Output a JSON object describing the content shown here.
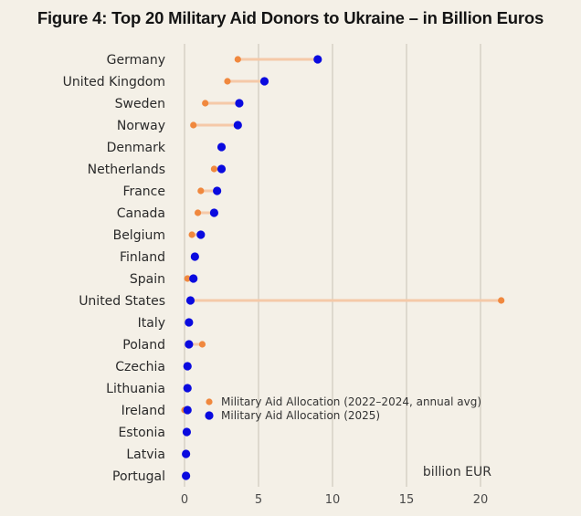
{
  "chart_data": {
    "type": "dumbbell",
    "title": "Figure 4: Top 20 Military Aid Donors to Ukraine – in Billion Euros",
    "xlabel": "billion EUR",
    "ylabel": "",
    "xlim": [
      0,
      22
    ],
    "xticks": [
      0,
      5,
      10,
      15,
      20
    ],
    "grid": true,
    "legend_position": "lower-center",
    "categories": [
      "Germany",
      "United Kingdom",
      "Sweden",
      "Norway",
      "Denmark",
      "Netherlands",
      "France",
      "Canada",
      "Belgium",
      "Finland",
      "Spain",
      "United States",
      "Italy",
      "Poland",
      "Czechia",
      "Lithuania",
      "Ireland",
      "Estonia",
      "Latvia",
      "Portugal"
    ],
    "series": [
      {
        "name": "Military Aid Allocation (2022–2024, annual avg)",
        "color": "#f0883e",
        "values": [
          3.6,
          2.9,
          1.4,
          0.6,
          2.5,
          2.0,
          1.1,
          0.9,
          0.5,
          0.7,
          0.2,
          21.4,
          0.3,
          1.2,
          0.2,
          0.2,
          0.0,
          0.15,
          0.1,
          0.1
        ]
      },
      {
        "name": "Military Aid Allocation (2025)",
        "color": "#0a0adf",
        "values": [
          9.0,
          5.4,
          3.7,
          3.6,
          2.5,
          2.5,
          2.2,
          2.0,
          1.1,
          0.7,
          0.6,
          0.4,
          0.3,
          0.3,
          0.2,
          0.2,
          0.2,
          0.15,
          0.1,
          0.1
        ]
      }
    ],
    "connector_color": "#f5c9a8",
    "gridline_color": "#d6d1c6"
  }
}
